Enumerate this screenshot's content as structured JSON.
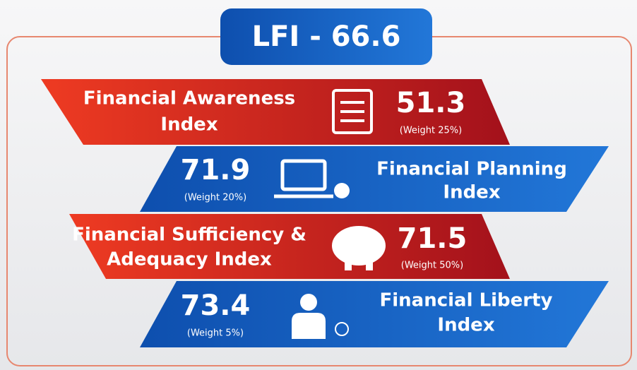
{
  "header": {
    "title": "LFI - 66.6"
  },
  "indices": [
    {
      "name_lines": [
        "Financial Awareness",
        "Index"
      ],
      "value": 51.3,
      "weight": "(Weight 25%)"
    },
    {
      "name_lines": [
        "Financial Planning",
        "Index"
      ],
      "value": 71.9,
      "weight": "(Weight 20%)"
    },
    {
      "name_lines": [
        "Financial Sufficiency &",
        "Adequacy Index"
      ],
      "value": 71.5,
      "weight": "(Weight 50%)"
    },
    {
      "name_lines": [
        "Financial Liberty",
        "Index"
      ],
      "value": 73.4,
      "weight": "(Weight 5%)"
    }
  ]
}
